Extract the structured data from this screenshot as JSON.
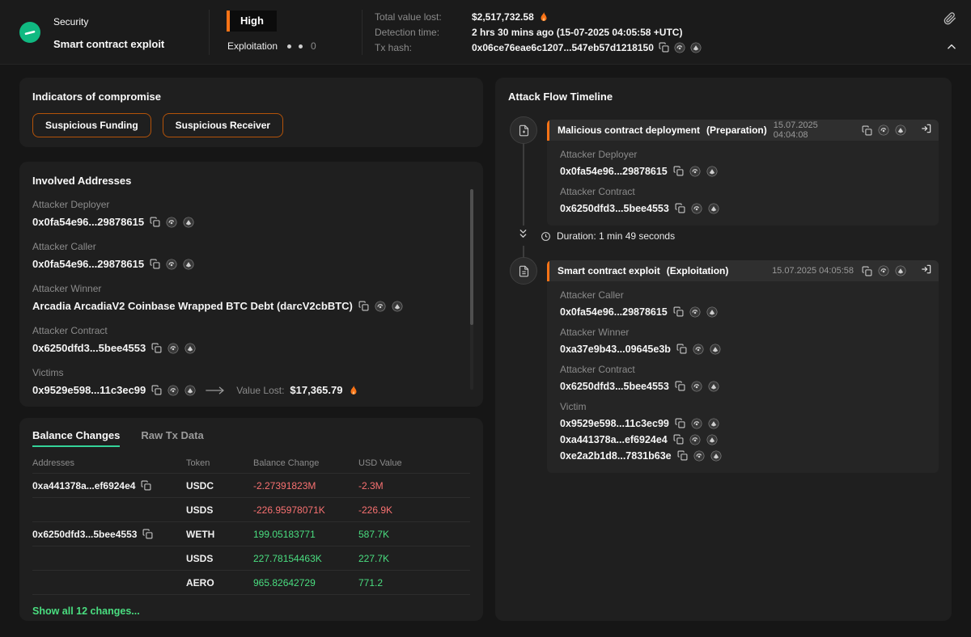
{
  "colors": {
    "accent_orange": "#f97316",
    "accent_green": "#34d399",
    "negative": "#f87171",
    "positive": "#4ade80"
  },
  "icons": {
    "copy-icon": "copy (double square)",
    "explorer-icon": "block explorer (dark circle logo)",
    "tracker-icon": "tx tracer (dark circle logo)",
    "open-icon": "open in explorer (arrow into bracket)",
    "attach-icon": "paperclip",
    "collapse-icon": "chevron-up",
    "flame-icon": "fire",
    "clock-icon": "clock",
    "arrow-right-icon": "long right arrow",
    "chevron-double-down-icon": "double chevron down",
    "contract-deploy-icon": "document in circle",
    "exploit-doc-icon": "document in circle"
  },
  "header": {
    "category": "Security",
    "title": "Smart contract exploit",
    "severity": "High",
    "phase": "Exploitation",
    "phase_count": "0",
    "total_value_lost_label": "Total value lost:",
    "total_value_lost": "$2,517,732.58",
    "detection_time_label": "Detection time:",
    "detection_time": "2 hrs 30 mins ago (15-07-2025 04:05:58 +UTC)",
    "tx_hash_label": "Tx hash:",
    "tx_hash": "0x06ce76eae6c1207...547eb57d1218150"
  },
  "indicators": {
    "title": "Indicators of compromise",
    "chips": [
      "Suspicious Funding",
      "Suspicious Receiver"
    ]
  },
  "involved": {
    "title": "Involved Addresses",
    "entries": [
      {
        "role": "Attacker Deployer",
        "address": "0x0fa54e96...29878615"
      },
      {
        "role": "Attacker Caller",
        "address": "0x0fa54e96...29878615"
      },
      {
        "role": "Attacker Winner",
        "address": "Arcadia ArcadiaV2 Coinbase Wrapped BTC Debt (darcV2cbBTC)"
      },
      {
        "role": "Attacker Contract",
        "address": "0x6250dfd3...5bee4553"
      },
      {
        "role": "Victims",
        "address": "0x9529e598...11c3ec99"
      }
    ],
    "value_lost_label": "Value Lost:",
    "value_lost": "$17,365.79"
  },
  "balance": {
    "tab_active": "Balance Changes",
    "tab_inactive": "Raw Tx Data",
    "columns": [
      "Addresses",
      "Token",
      "Balance Change",
      "USD Value"
    ],
    "rows": [
      {
        "address": "0xa441378a...ef6924e4",
        "token": "USDC",
        "change": "-2.27391823M",
        "usd": "-2.3M",
        "dir": "neg"
      },
      {
        "address": "",
        "token": "USDS",
        "change": "-226.95978071K",
        "usd": "-226.9K",
        "dir": "neg"
      },
      {
        "address": "0x6250dfd3...5bee4553",
        "token": "WETH",
        "change": "199.05183771",
        "usd": "587.7K",
        "dir": "pos"
      },
      {
        "address": "",
        "token": "USDS",
        "change": "227.78154463K",
        "usd": "227.7K",
        "dir": "pos"
      },
      {
        "address": "",
        "token": "AERO",
        "change": "965.82642729",
        "usd": "771.2",
        "dir": "pos"
      }
    ],
    "show_all": "Show all 12 changes..."
  },
  "timeline": {
    "title": "Attack Flow Timeline",
    "duration": "Duration: 1 min 49 seconds",
    "events": [
      {
        "title": "Malicious contract deployment",
        "stage": "(Preparation)",
        "timestamp": "15.07.2025 04:04:08",
        "entries": [
          {
            "role": "Attacker Deployer",
            "addresses": [
              "0x0fa54e96...29878615"
            ]
          },
          {
            "role": "Attacker Contract",
            "addresses": [
              "0x6250dfd3...5bee4553"
            ]
          }
        ]
      },
      {
        "title": "Smart contract exploit",
        "stage": "(Exploitation)",
        "timestamp": "15.07.2025 04:05:58",
        "entries": [
          {
            "role": "Attacker Caller",
            "addresses": [
              "0x0fa54e96...29878615"
            ]
          },
          {
            "role": "Attacker Winner",
            "addresses": [
              "0xa37e9b43...09645e3b"
            ]
          },
          {
            "role": "Attacker Contract",
            "addresses": [
              "0x6250dfd3...5bee4553"
            ]
          },
          {
            "role": "Victim",
            "addresses": [
              "0x9529e598...11c3ec99",
              "0xa441378a...ef6924e4",
              "0xe2a2b1d8...7831b63e"
            ]
          }
        ]
      }
    ]
  }
}
